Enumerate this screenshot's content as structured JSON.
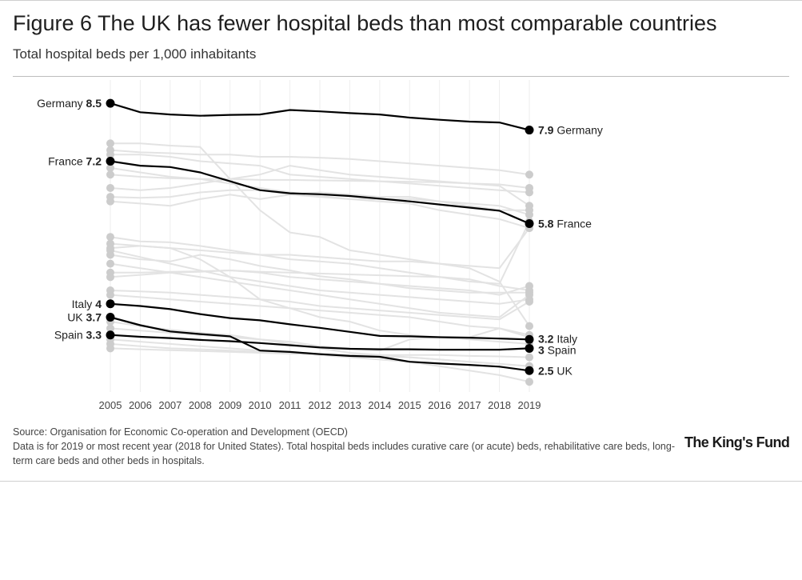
{
  "title": "Figure 6 The UK has fewer hospital beds than most comparable countries",
  "subtitle": "Total hospital beds per 1,000 inhabitants",
  "source": "Source: Organisation for Economic Co-operation and Development (OECD)",
  "note": "Data is for 2019 or most recent year (2018 for United States). Total hospital beds includes curative care (or acute) beds, rehabilitative care beds, long-term care beds and other beds in hospitals.",
  "logo_text": "The King's Fund",
  "colors": {
    "highlight": "#000000",
    "background_series": "#e3e3e3",
    "background_dot": "#cccccc"
  },
  "chart_data": {
    "type": "line",
    "title": "Figure 6 The UK has fewer hospital beds than most comparable countries",
    "subtitle": "Total hospital beds per 1,000 inhabitants",
    "xlabel": "",
    "ylabel": "",
    "x": [
      2005,
      2006,
      2007,
      2008,
      2009,
      2010,
      2011,
      2012,
      2013,
      2014,
      2015,
      2016,
      2017,
      2018,
      2019
    ],
    "ylim": [
      2.2,
      8.7
    ],
    "grid": "vertical",
    "highlighted_series": [
      {
        "name": "Germany",
        "label_start": "8.5",
        "label_end": "7.9",
        "values": [
          8.5,
          8.3,
          8.25,
          8.22,
          8.24,
          8.25,
          8.35,
          8.32,
          8.28,
          8.25,
          8.18,
          8.13,
          8.09,
          8.07,
          7.9
        ]
      },
      {
        "name": "France",
        "label_start": "7.2",
        "label_end": "5.8",
        "values": [
          7.2,
          7.1,
          7.07,
          6.95,
          6.75,
          6.55,
          6.48,
          6.46,
          6.42,
          6.36,
          6.3,
          6.23,
          6.16,
          6.09,
          5.8
        ]
      },
      {
        "name": "Italy",
        "label_start": "4",
        "label_end": "3.2",
        "values": [
          4.0,
          3.95,
          3.88,
          3.77,
          3.68,
          3.63,
          3.54,
          3.46,
          3.37,
          3.28,
          3.27,
          3.25,
          3.24,
          3.22,
          3.2
        ]
      },
      {
        "name": "UK",
        "label_start": "3.7",
        "label_end": "2.5",
        "values": [
          3.7,
          3.52,
          3.38,
          3.32,
          3.27,
          2.95,
          2.92,
          2.87,
          2.83,
          2.81,
          2.7,
          2.66,
          2.63,
          2.59,
          2.5
        ]
      },
      {
        "name": "Spain",
        "label_start": "3.3",
        "label_end": "3",
        "values": [
          3.3,
          3.26,
          3.23,
          3.19,
          3.16,
          3.12,
          3.07,
          3.02,
          2.99,
          2.98,
          2.98,
          2.97,
          2.97,
          2.97,
          3.0
        ]
      }
    ],
    "background_series": [
      [
        7.6,
        7.6,
        7.55,
        7.52,
        6.8,
        6.1,
        5.6,
        5.5,
        5.2,
        5.1,
        5.0,
        4.9,
        4.8,
        4.5,
        3.5
      ],
      [
        7.45,
        7.4,
        7.38,
        7.35,
        7.35,
        7.3,
        7.3,
        7.28,
        7.25,
        7.2,
        7.15,
        7.1,
        7.05,
        7.0,
        6.9
      ],
      [
        7.35,
        7.35,
        7.3,
        7.2,
        7.15,
        7.1,
        6.9,
        6.85,
        6.8,
        6.75,
        6.7,
        6.65,
        6.6,
        6.55,
        6.5
      ],
      [
        7.05,
        6.95,
        6.85,
        6.8,
        6.7,
        6.6,
        6.5,
        6.42,
        6.35,
        6.3,
        6.25,
        6.1,
        6.0,
        5.9,
        5.7
      ],
      [
        6.9,
        6.85,
        6.82,
        6.8,
        6.8,
        6.78,
        6.78,
        6.77,
        6.76,
        6.75,
        6.74,
        6.73,
        6.7,
        6.68,
        6.6
      ],
      [
        6.6,
        6.55,
        6.6,
        6.7,
        6.8,
        6.9,
        7.1,
        7.0,
        6.9,
        6.85,
        6.8,
        6.75,
        6.7,
        6.65,
        6.2
      ],
      [
        6.4,
        6.38,
        6.4,
        6.5,
        6.55,
        6.55,
        6.45,
        6.4,
        6.35,
        6.35,
        6.35,
        6.3,
        6.25,
        6.2,
        6.0
      ],
      [
        6.3,
        6.25,
        6.2,
        6.35,
        6.45,
        6.35,
        6.45,
        6.5,
        6.45,
        6.4,
        6.4,
        6.3,
        6.2,
        6.1,
        6.1
      ],
      [
        5.5,
        5.4,
        5.38,
        5.3,
        5.2,
        5.1,
        5.0,
        4.95,
        4.9,
        4.8,
        4.7,
        4.6,
        4.5,
        4.45,
        5.85
      ],
      [
        5.35,
        5.3,
        5.25,
        5.2,
        5.15,
        5.1,
        5.1,
        5.05,
        5.0,
        4.95,
        4.95,
        4.9,
        4.85,
        4.8,
        5.7
      ],
      [
        5.25,
        5.3,
        5.25,
        5.0,
        4.6,
        4.1,
        3.9,
        3.7,
        3.6,
        3.4,
        3.3,
        3.25,
        3.2,
        3.15,
        3.1
      ],
      [
        5.2,
        5.05,
        4.9,
        4.75,
        4.6,
        4.5,
        4.4,
        4.3,
        4.25,
        4.2,
        4.15,
        4.1,
        4.05,
        4.0,
        4.1
      ],
      [
        5.1,
        5.0,
        4.95,
        5.1,
        5.0,
        4.85,
        4.75,
        4.62,
        4.55,
        4.45,
        4.35,
        4.3,
        4.25,
        4.25,
        4.25
      ],
      [
        4.9,
        4.8,
        4.7,
        4.6,
        4.5,
        4.4,
        4.3,
        4.2,
        4.1,
        4.0,
        3.9,
        3.8,
        3.75,
        3.7,
        4.2
      ],
      [
        4.7,
        4.7,
        4.72,
        4.73,
        4.75,
        4.72,
        4.7,
        4.68,
        4.66,
        4.64,
        4.62,
        4.6,
        4.55,
        4.4,
        4.3
      ],
      [
        4.6,
        4.65,
        4.7,
        4.72,
        4.75,
        4.7,
        4.6,
        4.55,
        4.5,
        4.45,
        4.4,
        4.35,
        4.3,
        4.2,
        4.4
      ],
      [
        4.3,
        4.28,
        4.25,
        4.2,
        4.15,
        4.1,
        4.05,
        3.95,
        3.9,
        3.85,
        3.8,
        3.75,
        3.7,
        3.65,
        4.05
      ],
      [
        4.2,
        4.15,
        4.1,
        4.05,
        4.0,
        3.95,
        3.9,
        3.85,
        3.8,
        3.75,
        3.7,
        3.6,
        3.5,
        3.45,
        3.3
      ],
      [
        3.6,
        3.5,
        3.42,
        3.35,
        3.3,
        3.2,
        3.15,
        3.05,
        3.0,
        2.95,
        3.2,
        3.25,
        3.25,
        3.45,
        3.25
      ],
      [
        3.45,
        3.4,
        3.35,
        3.3,
        3.25,
        3.2,
        3.1,
        3.0,
        2.9,
        2.85,
        2.8,
        2.75,
        2.7,
        2.65,
        2.6
      ],
      [
        3.2,
        3.15,
        3.1,
        3.05,
        3.0,
        2.95,
        2.9,
        2.85,
        2.8,
        2.75,
        2.7,
        2.6,
        2.5,
        2.4,
        2.25
      ],
      [
        3.1,
        3.05,
        3.0,
        2.98,
        2.95,
        2.92,
        2.9,
        2.88,
        2.85,
        2.85,
        2.85,
        2.85,
        2.83,
        2.82,
        2.8
      ],
      [
        3.0,
        2.98,
        2.96,
        2.94,
        2.92,
        2.9,
        2.88,
        2.86,
        2.84,
        2.82,
        2.8,
        2.75,
        2.7,
        2.65,
        2.6
      ]
    ]
  }
}
